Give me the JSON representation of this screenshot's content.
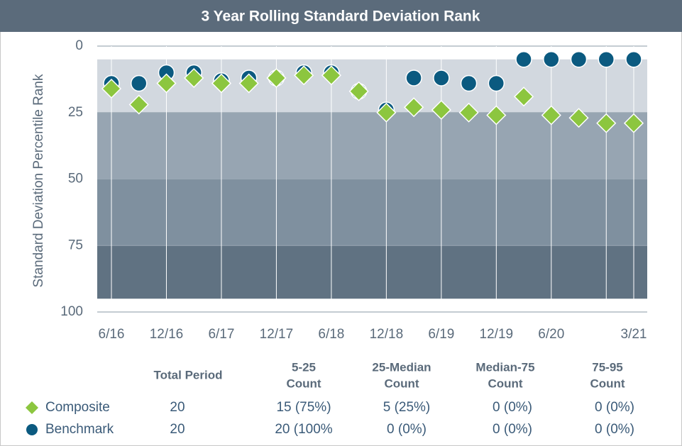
{
  "chart_data": {
    "type": "scatter",
    "title": "3 Year Rolling Standard Deviation Rank",
    "ylabel": "Standard Deviation Percentile Rank",
    "y_inverted": true,
    "categories": [
      "6/16",
      null,
      "12/16",
      null,
      "6/17",
      null,
      "12/17",
      null,
      "6/18",
      null,
      "12/18",
      null,
      "6/19",
      null,
      "12/19",
      null,
      "6/20",
      null,
      null,
      "3/21"
    ],
    "ylim": [
      0,
      100
    ],
    "yticks": [
      0,
      25,
      50,
      75,
      100
    ],
    "bands": [
      {
        "from": 5,
        "to": 25,
        "color": "#d2d8df"
      },
      {
        "from": 25,
        "to": 50,
        "color": "#97a5b2"
      },
      {
        "from": 50,
        "to": 75,
        "color": "#7f909f"
      },
      {
        "from": 75,
        "to": 95,
        "color": "#607282"
      }
    ],
    "series": [
      {
        "name": "Benchmark",
        "marker": "circle",
        "color": "#0b5a80",
        "values": [
          14,
          14,
          10,
          10,
          13,
          12,
          12,
          10,
          10,
          17,
          24,
          12,
          12,
          14,
          14,
          5,
          5,
          5,
          5,
          5
        ]
      },
      {
        "name": "Composite",
        "marker": "diamond",
        "color": "#8cc63f",
        "values": [
          16,
          22,
          14,
          12,
          14,
          14,
          12,
          11,
          11,
          17,
          25,
          23,
          24,
          25,
          26,
          19,
          26,
          27,
          29,
          29
        ]
      }
    ],
    "table": {
      "columns": [
        [
          "Total Period"
        ],
        [
          "5-25",
          "Count"
        ],
        [
          "25-Median",
          "Count"
        ],
        [
          "Median-75",
          "Count"
        ],
        [
          "75-95",
          "Count"
        ]
      ],
      "rows": [
        {
          "series": 1,
          "cells": [
            "20",
            "15 (75%)",
            "5 (25%)",
            "0  (0%)",
            "0  (0%)"
          ]
        },
        {
          "series": 0,
          "cells": [
            "20",
            "20 (100%",
            "0 (0%)",
            "0  (0%)",
            "0  (0%)"
          ]
        }
      ]
    }
  }
}
